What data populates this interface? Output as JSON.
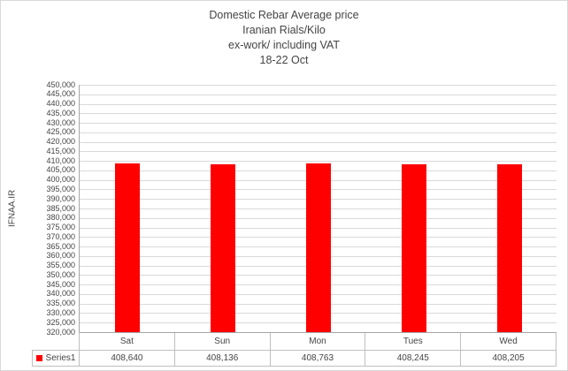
{
  "chart_data": {
    "type": "bar",
    "title": "Domestic Rebar Average price",
    "title_lines": [
      "Domestic Rebar Average price",
      "Iranian Rials/Kilo",
      "ex-work/ including VAT",
      "18-22 Oct"
    ],
    "ylabel": "IFNAA.IR",
    "xlabel": "",
    "categories": [
      "Sat",
      "Sun",
      "Mon",
      "Tues",
      "Wed"
    ],
    "series": [
      {
        "name": "Series1",
        "color": "#FF0000",
        "values": [
          408640,
          408136,
          408763,
          408245,
          408205
        ],
        "value_labels": [
          "408,640",
          "408,136",
          "408,763",
          "408,245",
          "408,205"
        ]
      }
    ],
    "ylim": [
      320000,
      450000
    ],
    "ytick_step": 5000,
    "grid": true,
    "legend_position": "bottom-table"
  },
  "colors": {
    "bar": "#FF0000",
    "gridline": "#D9D9D9",
    "axis_line": "#A6A6A6",
    "table_border": "#BFBFBF",
    "text": "#444444",
    "background": "#FFFFFF"
  }
}
